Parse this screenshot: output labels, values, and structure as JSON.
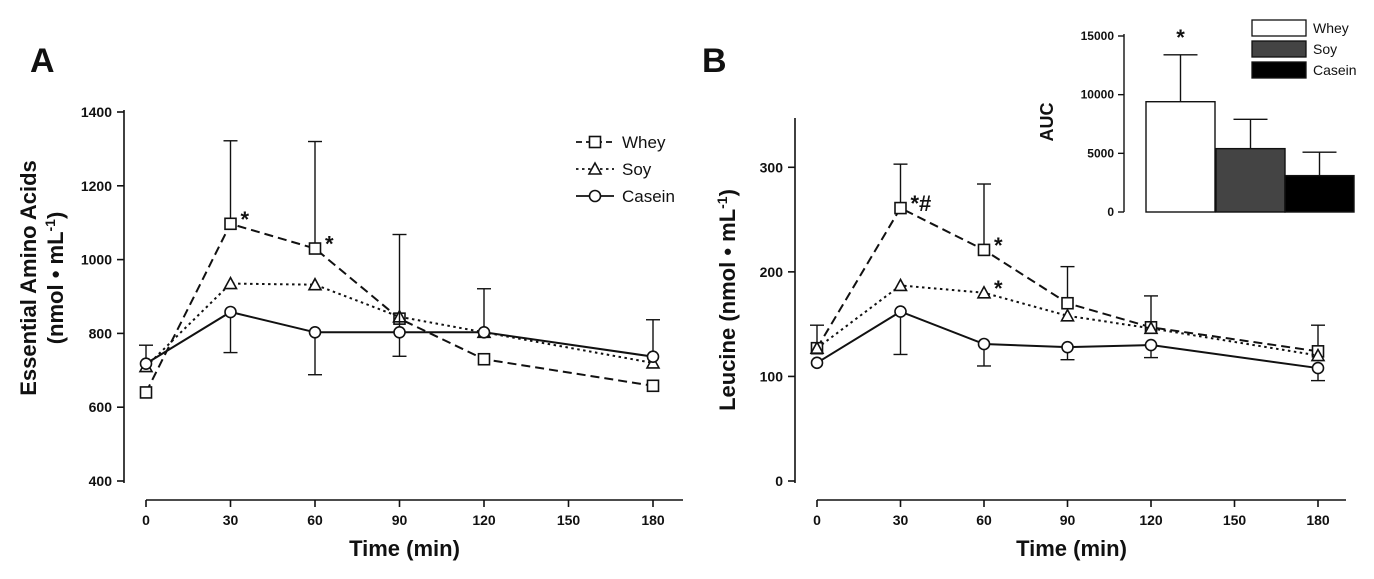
{
  "chart_data": [
    {
      "panel": "A",
      "type": "line",
      "ylabel_main": "Essential Amino Acids",
      "ylabel_unit": "(nmol • mL",
      "ylabel_sup": "-1",
      "ylabel_close": ")",
      "xlabel": "Time (min)",
      "ylim": [
        400,
        1400
      ],
      "yticks": [
        "400",
        "600",
        "800",
        "1000",
        "1200",
        "1400"
      ],
      "xticks": [
        "0",
        "30",
        "60",
        "90",
        "120",
        "150",
        "180"
      ],
      "x": [
        0,
        30,
        60,
        90,
        120,
        180
      ],
      "series": [
        {
          "name": "Whey",
          "style": "dashed",
          "marker": "square",
          "values": [
            640,
            1097,
            1030,
            840,
            730,
            658
          ],
          "err_up": [
            0,
            225,
            290,
            0,
            0,
            0
          ],
          "err_down": [
            0,
            0,
            0,
            0,
            0,
            0
          ]
        },
        {
          "name": "Soy",
          "style": "dotted",
          "marker": "triangle",
          "values": [
            710,
            935,
            932,
            845,
            803,
            720
          ],
          "err_up": [
            0,
            0,
            0,
            0,
            0,
            0
          ],
          "err_down": [
            0,
            0,
            0,
            0,
            0,
            0
          ]
        },
        {
          "name": "Casein",
          "style": "solid",
          "marker": "circle",
          "values": [
            718,
            858,
            803,
            803,
            803,
            737
          ],
          "err_up": [
            50,
            0,
            0,
            265,
            118,
            100
          ],
          "err_down": [
            0,
            110,
            115,
            65,
            0,
            0
          ]
        }
      ],
      "annotations": [
        {
          "text": "*",
          "x": 30,
          "y": 1097
        },
        {
          "text": "*",
          "x": 60,
          "y": 1030
        }
      ]
    },
    {
      "panel": "B",
      "type": "line",
      "ylabel_main": "Leucine",
      "ylabel_unit": "(nmol • mL",
      "ylabel_sup": "-1",
      "ylabel_close": ")",
      "xlabel": "Time (min)",
      "ylim": [
        0,
        350
      ],
      "yticks": [
        "0",
        "100",
        "200",
        "300"
      ],
      "xticks": [
        "0",
        "30",
        "60",
        "90",
        "120",
        "150",
        "180"
      ],
      "x": [
        0,
        30,
        60,
        90,
        120,
        180
      ],
      "series": [
        {
          "name": "Whey",
          "style": "dashed",
          "marker": "square",
          "values": [
            127,
            261,
            221,
            170,
            147,
            124
          ],
          "err_up": [
            22,
            42,
            63,
            35,
            30,
            25
          ],
          "err_down": [
            0,
            0,
            0,
            0,
            0,
            0
          ]
        },
        {
          "name": "Soy",
          "style": "dotted",
          "marker": "triangle",
          "values": [
            127,
            187,
            180,
            158,
            146,
            120
          ],
          "err_up": [
            0,
            0,
            0,
            0,
            0,
            0
          ],
          "err_down": [
            0,
            0,
            0,
            0,
            0,
            0
          ]
        },
        {
          "name": "Casein",
          "style": "solid",
          "marker": "circle",
          "values": [
            113,
            162,
            131,
            128,
            130,
            108
          ],
          "err_up": [
            0,
            0,
            0,
            0,
            0,
            0
          ],
          "err_down": [
            0,
            41,
            21,
            12,
            12,
            12
          ]
        }
      ],
      "annotations": [
        {
          "text": "*#",
          "x": 30,
          "y": 261
        },
        {
          "text": "*",
          "x": 60,
          "y": 221
        },
        {
          "text": "*",
          "x": 60,
          "y": 180
        }
      ]
    },
    {
      "panel": "B-inset",
      "type": "bar",
      "ylabel": "AUC",
      "ylim": [
        0,
        15000
      ],
      "yticks": [
        "0",
        "5000",
        "10000",
        "15000"
      ],
      "categories": [
        "Whey",
        "Soy",
        "Casein"
      ],
      "values": [
        9400,
        5400,
        3100
      ],
      "err_up": [
        4000,
        2500,
        2000
      ],
      "colors": [
        "#ffffff",
        "#444444",
        "#000000"
      ],
      "annotations": [
        {
          "text": "*",
          "category": "Whey"
        }
      ]
    }
  ]
}
